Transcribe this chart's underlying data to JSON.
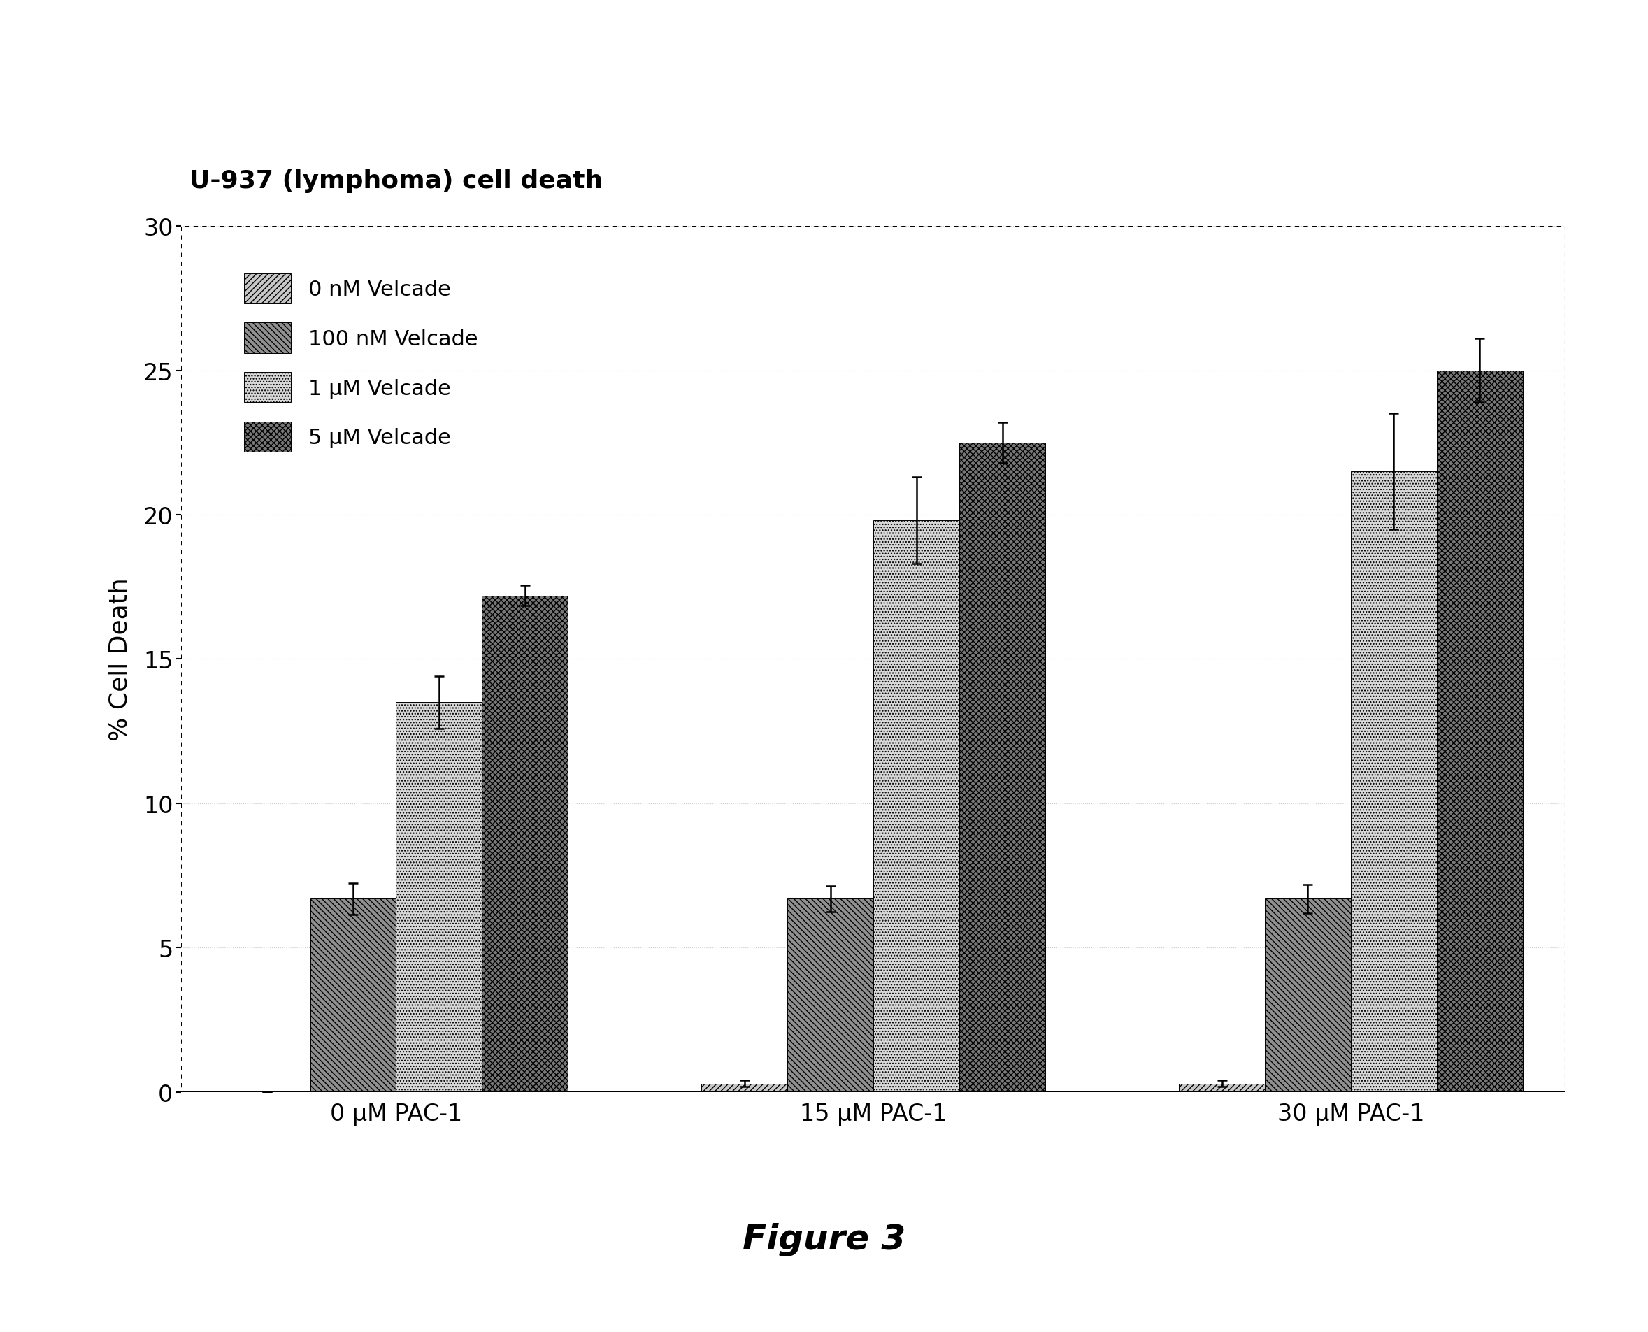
{
  "title": "U-937 (lymphoma) cell death",
  "xlabel_groups": [
    "0 μM PAC-1",
    "15 μM PAC-1",
    "30 μM PAC-1"
  ],
  "ylabel": "% Cell Death",
  "figure_label": "Figure 3",
  "legend_labels": [
    "0 nM Velcade",
    "100 nM Velcade",
    "1 μM Velcade",
    "5 μM Velcade"
  ],
  "all_values": [
    [
      0.0,
      0.3,
      0.3
    ],
    [
      6.7,
      6.7,
      6.7
    ],
    [
      13.5,
      19.8,
      21.5
    ],
    [
      17.2,
      22.5,
      25.0
    ]
  ],
  "all_errors": [
    [
      0.0,
      0.12,
      0.12
    ],
    [
      0.55,
      0.45,
      0.5
    ],
    [
      0.9,
      1.5,
      2.0
    ],
    [
      0.35,
      0.7,
      1.1
    ]
  ],
  "ylim": [
    0,
    30
  ],
  "yticks": [
    0,
    5,
    10,
    15,
    20,
    25,
    30
  ],
  "bar_width": 0.18,
  "group_positions": [
    0.0,
    1.0,
    2.0
  ],
  "face_colors": [
    "#c8c8c8",
    "#909090",
    "#d8d8d8",
    "#787878"
  ],
  "hatch_styles": [
    "////",
    "\\\\\\\\",
    "....",
    "xxxx"
  ],
  "background_color": "#ffffff"
}
